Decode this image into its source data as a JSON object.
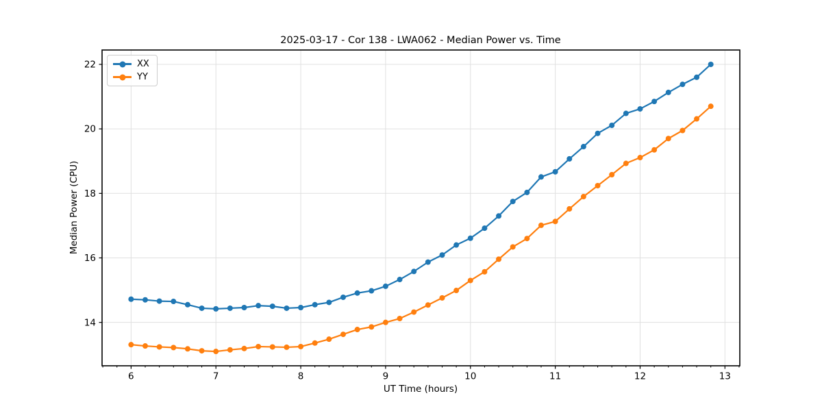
{
  "window": {
    "background": "#ffffff"
  },
  "colors": {
    "grid": "#e0e0e0",
    "spine": "#000000",
    "tick": "#000000",
    "text": "#000000",
    "legend_border": "#cccccc",
    "series_xx": "#1f77b4",
    "series_yy": "#ff7f0e"
  },
  "chart_data": {
    "type": "line",
    "title": "2025-03-17 - Cor 138 - LWA062 - Median Power vs. Time",
    "xlabel": "UT Time (hours)",
    "ylabel": "Median Power (CPU)",
    "xlim": [
      5.658,
      13.175
    ],
    "ylim": [
      12.655,
      22.445
    ],
    "x_ticks": [
      6,
      7,
      8,
      9,
      10,
      11,
      12,
      13
    ],
    "y_ticks": [
      14,
      16,
      18,
      20,
      22
    ],
    "x_minor_ticks_per_hour": 6,
    "grid": true,
    "legend_position": "upper left",
    "marker": "circle",
    "x": [
      6.0,
      6.1667,
      6.3333,
      6.5,
      6.6667,
      6.8333,
      7.0,
      7.1667,
      7.3333,
      7.5,
      7.6667,
      7.8333,
      8.0,
      8.1667,
      8.3333,
      8.5,
      8.6667,
      8.8333,
      9.0,
      9.1667,
      9.3333,
      9.5,
      9.6667,
      9.8333,
      10.0,
      10.1667,
      10.3333,
      10.5,
      10.6667,
      10.8333,
      11.0,
      11.1667,
      11.3333,
      11.5,
      11.6667,
      11.8333,
      12.0,
      12.1667,
      12.3333,
      12.5,
      12.6667,
      12.8333
    ],
    "series": [
      {
        "name": "XX",
        "color": "#1f77b4",
        "values": [
          14.72,
          14.7,
          14.66,
          14.65,
          14.55,
          14.44,
          14.42,
          14.44,
          14.46,
          14.52,
          14.5,
          14.44,
          14.46,
          14.55,
          14.62,
          14.78,
          14.91,
          14.98,
          15.12,
          15.33,
          15.58,
          15.87,
          16.09,
          16.4,
          16.61,
          16.92,
          17.3,
          17.75,
          18.03,
          18.51,
          18.67,
          19.07,
          19.45,
          19.86,
          20.11,
          20.48,
          20.62,
          20.85,
          21.13,
          21.38,
          21.6,
          22.0
        ]
      },
      {
        "name": "YY",
        "color": "#ff7f0e",
        "values": [
          13.31,
          13.27,
          13.24,
          13.22,
          13.18,
          13.12,
          13.1,
          13.15,
          13.19,
          13.25,
          13.24,
          13.23,
          13.25,
          13.36,
          13.48,
          13.63,
          13.78,
          13.86,
          14.0,
          14.12,
          14.32,
          14.54,
          14.76,
          14.99,
          15.3,
          15.57,
          15.96,
          16.34,
          16.6,
          17.01,
          17.13,
          17.52,
          17.9,
          18.24,
          18.58,
          18.93,
          19.11,
          19.35,
          19.7,
          19.95,
          20.31,
          20.7
        ]
      }
    ]
  }
}
